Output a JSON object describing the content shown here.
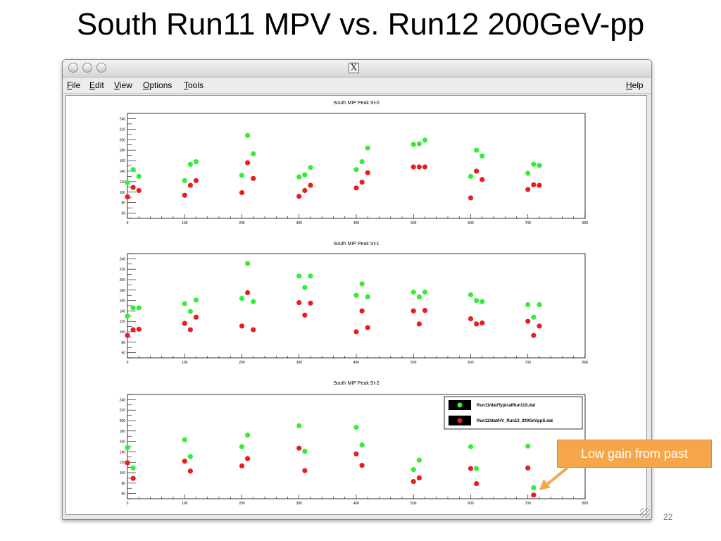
{
  "slide": {
    "title": "South Run11 MPV vs. Run12 200GeV-pp",
    "page_number": "22",
    "callout_text": "Low gain from past"
  },
  "window": {
    "title_icon": "X",
    "menu": {
      "items": [
        "File",
        "Edit",
        "View",
        "Options",
        "Tools"
      ],
      "help": "Help"
    }
  },
  "colors": {
    "run11": "#33ee33",
    "run12": "#e81e1e",
    "callout": "#f5a64b"
  },
  "chart_data": [
    {
      "type": "scatter",
      "title": "South MIP Peak St-0",
      "xlim": [
        0,
        800
      ],
      "ylim": [
        50,
        250
      ],
      "xticks": [
        0,
        100,
        200,
        300,
        400,
        500,
        600,
        700,
        800
      ],
      "yticks": [
        60,
        80,
        100,
        120,
        140,
        160,
        180,
        200,
        220,
        240
      ],
      "series": [
        {
          "color": "#33ee33",
          "x": [
            0,
            10,
            20,
            100,
            110,
            120,
            200,
            210,
            220,
            300,
            310,
            320,
            400,
            410,
            420,
            500,
            510,
            520,
            600,
            610,
            620,
            700,
            710,
            720
          ],
          "y": [
            118,
            143,
            130,
            122,
            153,
            158,
            132,
            208,
            173,
            129,
            133,
            147,
            143,
            158,
            184,
            191,
            192,
            199,
            130,
            180,
            169,
            136,
            153,
            151
          ]
        },
        {
          "color": "#e81e1e",
          "x": [
            0,
            10,
            20,
            100,
            110,
            120,
            200,
            210,
            220,
            300,
            310,
            320,
            400,
            410,
            420,
            500,
            510,
            520,
            600,
            610,
            620,
            700,
            710,
            720
          ],
          "y": [
            91,
            109,
            103,
            94,
            113,
            122,
            99,
            156,
            126,
            92,
            103,
            113,
            108,
            119,
            137,
            148,
            148,
            148,
            89,
            140,
            124,
            105,
            114,
            113
          ]
        }
      ]
    },
    {
      "type": "scatter",
      "title": "South MIP Peak St-1",
      "xlim": [
        0,
        800
      ],
      "ylim": [
        50,
        250
      ],
      "xticks": [
        0,
        100,
        200,
        300,
        400,
        500,
        600,
        700,
        800
      ],
      "yticks": [
        60,
        80,
        100,
        120,
        140,
        160,
        180,
        200,
        220,
        240
      ],
      "series": [
        {
          "color": "#33ee33",
          "x": [
            0,
            10,
            20,
            100,
            110,
            120,
            200,
            210,
            220,
            300,
            310,
            320,
            400,
            410,
            420,
            500,
            510,
            520,
            600,
            610,
            620,
            700,
            710,
            720
          ],
          "y": [
            130,
            146,
            146,
            154,
            139,
            161,
            164,
            231,
            158,
            207,
            185,
            207,
            170,
            192,
            167,
            176,
            167,
            176,
            171,
            160,
            158,
            152,
            128,
            152
          ]
        },
        {
          "color": "#e81e1e",
          "x": [
            0,
            10,
            20,
            100,
            110,
            120,
            200,
            210,
            220,
            300,
            310,
            320,
            400,
            410,
            420,
            500,
            510,
            520,
            600,
            610,
            620,
            700,
            710,
            720
          ],
          "y": [
            93,
            104,
            105,
            116,
            104,
            128,
            111,
            175,
            104,
            156,
            132,
            155,
            100,
            140,
            108,
            140,
            115,
            141,
            125,
            115,
            117,
            120,
            93,
            111
          ]
        }
      ]
    },
    {
      "type": "scatter",
      "title": "South MIP Peak St-2",
      "xlim": [
        0,
        800
      ],
      "ylim": [
        50,
        250
      ],
      "xticks": [
        0,
        100,
        200,
        300,
        400,
        500,
        600,
        700,
        800
      ],
      "yticks": [
        60,
        80,
        100,
        120,
        140,
        160,
        180,
        200,
        220,
        240
      ],
      "legend": {
        "placement": "top-right",
        "entries": [
          {
            "label": "Run11/dat/TypicalRun11S.dat",
            "color": "#33ee33"
          },
          {
            "label": "Run12/dat/HV_Run12_200GeVppS.dat",
            "color": "#e81e1e"
          }
        ]
      },
      "series": [
        {
          "color": "#33ee33",
          "x": [
            0,
            10,
            100,
            110,
            200,
            210,
            300,
            310,
            400,
            410,
            500,
            510,
            600,
            610,
            700,
            710
          ],
          "y": [
            148,
            109,
            163,
            131,
            150,
            172,
            190,
            141,
            187,
            153,
            106,
            124,
            150,
            108,
            151,
            71
          ]
        },
        {
          "color": "#e81e1e",
          "x": [
            0,
            10,
            100,
            110,
            200,
            210,
            300,
            310,
            400,
            410,
            500,
            510,
            600,
            610,
            700,
            710
          ],
          "y": [
            119,
            89,
            122,
            103,
            113,
            127,
            147,
            104,
            136,
            114,
            83,
            90,
            108,
            79,
            109,
            57
          ]
        }
      ]
    }
  ]
}
